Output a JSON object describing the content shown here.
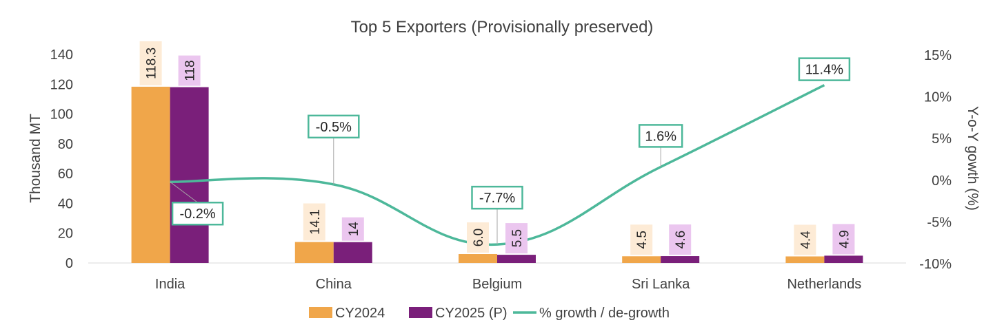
{
  "chart_data": {
    "type": "bar",
    "title": "Top 5 Exporters (Provisionally preserved)",
    "ylabel": "Thousand MT",
    "y2label": "Y-o-Y gowth (%)",
    "xlabel": "",
    "ylim": [
      0,
      140
    ],
    "y2lim": [
      -10,
      15
    ],
    "yticks": [
      "0",
      "20",
      "40",
      "60",
      "80",
      "100",
      "120",
      "140"
    ],
    "y2ticks": [
      "-10%",
      "-5%",
      "0%",
      "5%",
      "10%",
      "15%"
    ],
    "categories": [
      "India",
      "China",
      "Belgium",
      "Sri Lanka",
      "Netherlands"
    ],
    "series": [
      {
        "name": "CY2024",
        "type": "bar",
        "color": "#F0A64A",
        "label_bg": "#FDEBD6",
        "values": [
          118.3,
          14.1,
          6.0,
          4.5,
          4.4
        ],
        "labels": [
          "118.3",
          "14.1",
          "6.0",
          "4.5",
          "4.4"
        ]
      },
      {
        "name": "CY2025 (P)",
        "type": "bar",
        "color": "#7A1F7A",
        "label_bg": "#EBC6EF",
        "values": [
          118,
          14,
          5.5,
          4.6,
          4.9
        ],
        "labels": [
          "118",
          "14",
          "5.5",
          "4.6",
          "4.9"
        ]
      },
      {
        "name": "% growth / de-growth",
        "type": "line",
        "axis": "secondary",
        "color": "#4DB89A",
        "values": [
          -0.2,
          -0.5,
          -7.7,
          1.6,
          11.4
        ],
        "labels": [
          "-0.2%",
          "-0.5%",
          "-7.7%",
          "1.6%",
          "11.4%"
        ]
      }
    ],
    "legend": "bottom",
    "grid": false
  }
}
